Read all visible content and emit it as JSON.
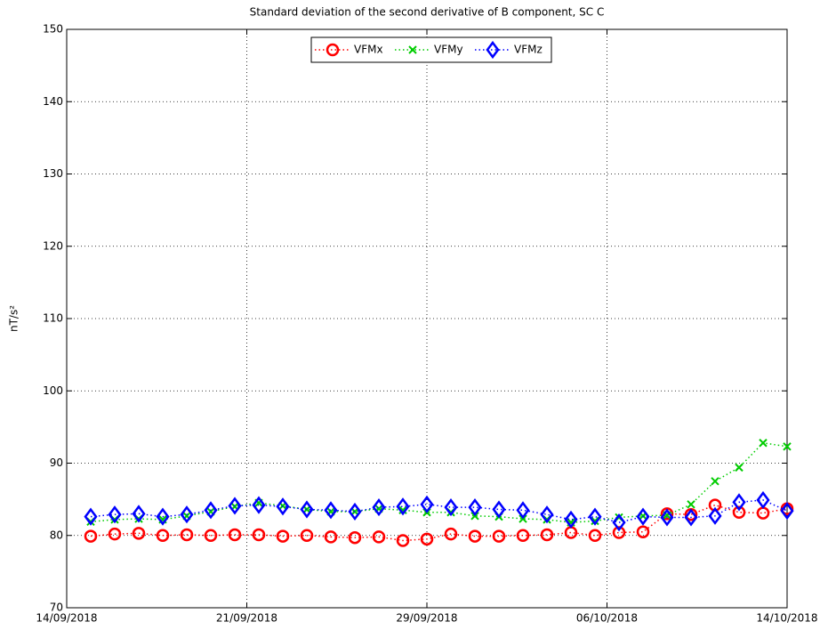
{
  "chart_data": {
    "type": "line",
    "title": "Standard deviation of the second derivative of B component, SC C",
    "y_label": "nT/s²",
    "x": [
      "2018-09-15",
      "2018-09-16",
      "2018-09-17",
      "2018-09-18",
      "2018-09-19",
      "2018-09-20",
      "2018-09-21",
      "2018-09-22",
      "2018-09-23",
      "2018-09-24",
      "2018-09-25",
      "2018-09-26",
      "2018-09-27",
      "2018-09-28",
      "2018-09-29",
      "2018-09-30",
      "2018-10-01",
      "2018-10-02",
      "2018-10-03",
      "2018-10-04",
      "2018-10-05",
      "2018-10-06",
      "2018-10-07",
      "2018-10-08",
      "2018-10-09",
      "2018-10-10",
      "2018-10-11",
      "2018-10-12",
      "2018-10-13",
      "2018-10-14"
    ],
    "series": [
      {
        "name": "VFMx",
        "color": "#ff0000",
        "marker": "circle",
        "values": [
          79.9,
          80.2,
          80.3,
          80.0,
          80.1,
          80.0,
          80.1,
          80.1,
          79.9,
          80.0,
          79.8,
          79.7,
          79.8,
          79.3,
          79.5,
          80.2,
          79.9,
          79.9,
          80.0,
          80.1,
          80.4,
          80.0,
          80.4,
          80.5,
          83.0,
          82.9,
          84.2,
          83.2,
          83.1,
          83.7
        ]
      },
      {
        "name": "VFMy",
        "color": "#00cc00",
        "marker": "x",
        "values": [
          81.9,
          82.2,
          82.3,
          82.2,
          82.7,
          83.3,
          84.0,
          84.5,
          84.1,
          83.6,
          83.3,
          83.3,
          83.7,
          83.5,
          83.2,
          83.2,
          82.7,
          82.6,
          82.3,
          82.2,
          81.8,
          82.0,
          82.5,
          82.7,
          82.8,
          84.3,
          87.5,
          89.4,
          92.8,
          92.3
        ]
      },
      {
        "name": "VFMz",
        "color": "#0000ff",
        "marker": "diamond",
        "values": [
          82.6,
          82.9,
          83.0,
          82.6,
          82.9,
          83.5,
          84.1,
          84.2,
          84.0,
          83.6,
          83.5,
          83.3,
          83.9,
          84.0,
          84.3,
          83.9,
          83.9,
          83.6,
          83.5,
          82.9,
          82.2,
          82.6,
          81.8,
          82.6,
          82.5,
          82.5,
          82.7,
          84.6,
          84.9,
          83.4
        ]
      }
    ],
    "xlim": [
      "2018-09-14T00:00",
      "2018-10-14T00:00"
    ],
    "xticks": [
      {
        "value": "2018-09-14T00:00",
        "label": "14/09/2018"
      },
      {
        "value": "2018-09-21T12:00",
        "label": "21/09/2018"
      },
      {
        "value": "2018-09-29T00:00",
        "label": "29/09/2018"
      },
      {
        "value": "2018-10-06T12:00",
        "label": "06/10/2018"
      },
      {
        "value": "2018-10-14T00:00",
        "label": "14/10/2018"
      }
    ],
    "ylim": [
      70,
      150
    ],
    "yticks": [
      70,
      80,
      90,
      100,
      110,
      120,
      130,
      140,
      150
    ],
    "grid": true,
    "legend": "upper center"
  }
}
